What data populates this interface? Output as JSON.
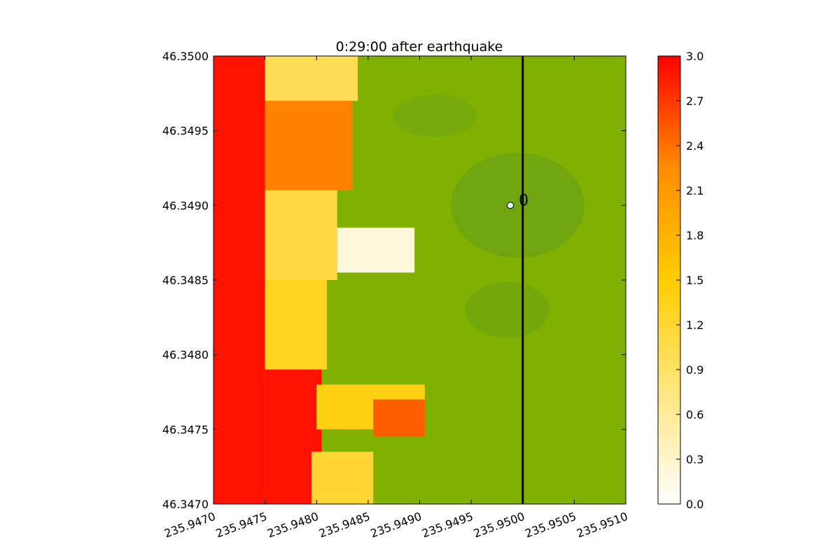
{
  "chart_data": {
    "type": "heatmap",
    "title": "0:29:00 after earthquake",
    "xlabel": "",
    "ylabel": "",
    "xlim": [
      235.947,
      235.951
    ],
    "ylim": [
      46.347,
      46.35
    ],
    "x_ticks": [
      "235.9470",
      "235.9475",
      "235.9480",
      "235.9485",
      "235.9490",
      "235.9495",
      "235.9500",
      "235.9505",
      "235.9510"
    ],
    "x_tick_values": [
      235.947,
      235.9475,
      235.948,
      235.9485,
      235.949,
      235.9495,
      235.95,
      235.9505,
      235.951
    ],
    "y_ticks": [
      "46.3470",
      "46.3475",
      "46.3480",
      "46.3485",
      "46.3490",
      "46.3495",
      "46.3500"
    ],
    "y_tick_values": [
      46.347,
      46.3475,
      46.348,
      46.3485,
      46.349,
      46.3495,
      46.35
    ],
    "colorbar": {
      "vmin": 0.0,
      "vmax": 3.0,
      "ticks": [
        "0.0",
        "0.3",
        "0.6",
        "0.9",
        "1.2",
        "1.5",
        "1.8",
        "2.1",
        "2.4",
        "2.7",
        "3.0"
      ],
      "tick_values": [
        0.0,
        0.3,
        0.6,
        0.9,
        1.2,
        1.5,
        1.8,
        2.1,
        2.4,
        2.7,
        3.0
      ],
      "colors": [
        "#ffffff",
        "#ffe680",
        "#ffcc00",
        "#ff8c00",
        "#ff0000"
      ]
    },
    "land_colors": {
      "light": "#80b000",
      "dark": "#5a9a20"
    },
    "vertical_line_x": 235.95,
    "gauge": {
      "label": "0",
      "x": 235.94988,
      "y": 46.349
    },
    "regions": [
      {
        "x0": 235.947,
        "x1": 235.9475,
        "y0": 46.347,
        "y1": 46.35,
        "value": 2.9
      },
      {
        "x0": 235.9475,
        "x1": 235.94805,
        "y0": 46.347,
        "y1": 46.3479,
        "value": 2.9
      },
      {
        "x0": 235.9475,
        "x1": 235.9481,
        "y0": 46.3479,
        "y1": 46.3485,
        "value": 1.3
      },
      {
        "x0": 235.9475,
        "x1": 235.9482,
        "y0": 46.3485,
        "y1": 46.3491,
        "value": 1.1
      },
      {
        "x0": 235.9475,
        "x1": 235.94835,
        "y0": 46.3491,
        "y1": 46.3497,
        "value": 2.3
      },
      {
        "x0": 235.9475,
        "x1": 235.9484,
        "y0": 46.3497,
        "y1": 46.35,
        "value": 1.0
      },
      {
        "x0": 235.9482,
        "x1": 235.94895,
        "y0": 46.34855,
        "y1": 46.34885,
        "value": 0.2
      },
      {
        "x0": 235.948,
        "x1": 235.94905,
        "y0": 46.3475,
        "y1": 46.3478,
        "value": 1.4
      },
      {
        "x0": 235.94855,
        "x1": 235.94905,
        "y0": 46.34745,
        "y1": 46.3477,
        "value": 2.5
      },
      {
        "x0": 235.94795,
        "x1": 235.94855,
        "y0": 46.347,
        "y1": 46.34735,
        "value": 1.2
      }
    ]
  }
}
